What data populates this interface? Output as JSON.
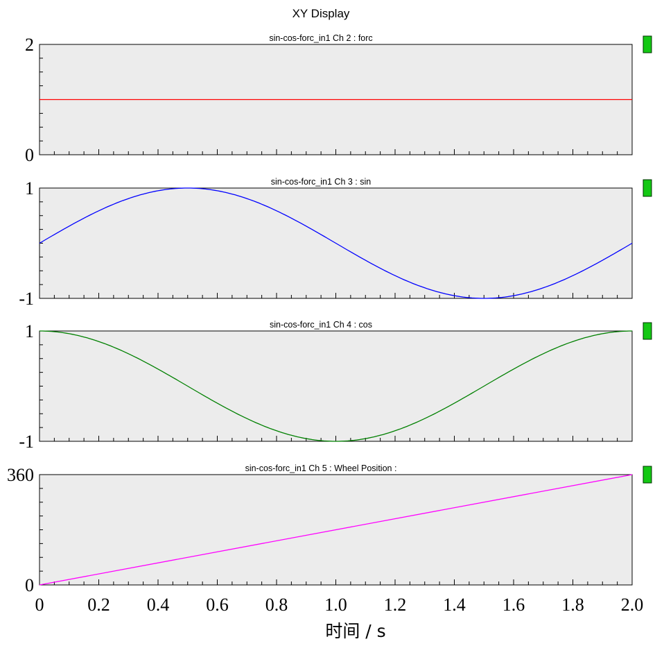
{
  "chart_data": {
    "type": "line",
    "title": "XY Display",
    "xlabel": "时间 / s",
    "xlim": [
      0,
      2.0
    ],
    "x_ticks": [
      "0",
      "0.2",
      "0.4",
      "0.6",
      "0.8",
      "1.0",
      "1.2",
      "1.4",
      "1.6",
      "1.8",
      "2.0"
    ],
    "x_tick_values": [
      0,
      0.2,
      0.4,
      0.6,
      0.8,
      1.0,
      1.2,
      1.4,
      1.6,
      1.8,
      2.0
    ],
    "grid": false,
    "panels": [
      {
        "title": "sin-cos-forc_in1  Ch 2 : forc",
        "ylim": [
          0,
          2
        ],
        "y_tick_labels": [
          "2",
          "0"
        ],
        "color": "#ff0000",
        "series": [
          {
            "name": "forc",
            "x": [
              0,
              0.5,
              1.0,
              1.5,
              2.0
            ],
            "y": [
              1,
              1,
              1,
              1,
              1
            ]
          }
        ]
      },
      {
        "title": "sin-cos-forc_in1  Ch 3 : sin",
        "ylim": [
          -1,
          1
        ],
        "y_tick_labels": [
          "1",
          "-1"
        ],
        "color": "#0000ff",
        "series": [
          {
            "name": "sin",
            "x": [
              0,
              0.1,
              0.2,
              0.3,
              0.4,
              0.5,
              0.6,
              0.7,
              0.8,
              0.9,
              1.0,
              1.1,
              1.2,
              1.3,
              1.4,
              1.5,
              1.6,
              1.7,
              1.8,
              1.9,
              2.0
            ],
            "y": [
              0,
              0.31,
              0.59,
              0.81,
              0.95,
              1.0,
              0.95,
              0.81,
              0.59,
              0.31,
              0,
              -0.31,
              -0.59,
              -0.81,
              -0.95,
              -1.0,
              -0.95,
              -0.81,
              -0.59,
              -0.31,
              0
            ]
          }
        ]
      },
      {
        "title": "sin-cos-forc_in1  Ch 4 : cos",
        "ylim": [
          -1,
          1
        ],
        "y_tick_labels": [
          "1",
          "-1"
        ],
        "color": "#008000",
        "series": [
          {
            "name": "cos",
            "x": [
              0,
              0.1,
              0.2,
              0.3,
              0.4,
              0.5,
              0.6,
              0.7,
              0.8,
              0.9,
              1.0,
              1.1,
              1.2,
              1.3,
              1.4,
              1.5,
              1.6,
              1.7,
              1.8,
              1.9,
              2.0
            ],
            "y": [
              1.0,
              0.95,
              0.81,
              0.59,
              0.31,
              0,
              -0.31,
              -0.59,
              -0.81,
              -0.95,
              -1.0,
              -0.95,
              -0.81,
              -0.59,
              -0.31,
              0,
              0.31,
              0.59,
              0.81,
              0.95,
              1.0
            ]
          }
        ]
      },
      {
        "title": "sin-cos-forc_in1  Ch 5 : Wheel Position :",
        "ylim": [
          0,
          360
        ],
        "y_tick_labels": [
          "360",
          "0"
        ],
        "color": "#ff00ff",
        "series": [
          {
            "name": "Wheel Position",
            "x": [
              0,
              2.0
            ],
            "y": [
              0,
              360
            ]
          }
        ]
      }
    ]
  }
}
